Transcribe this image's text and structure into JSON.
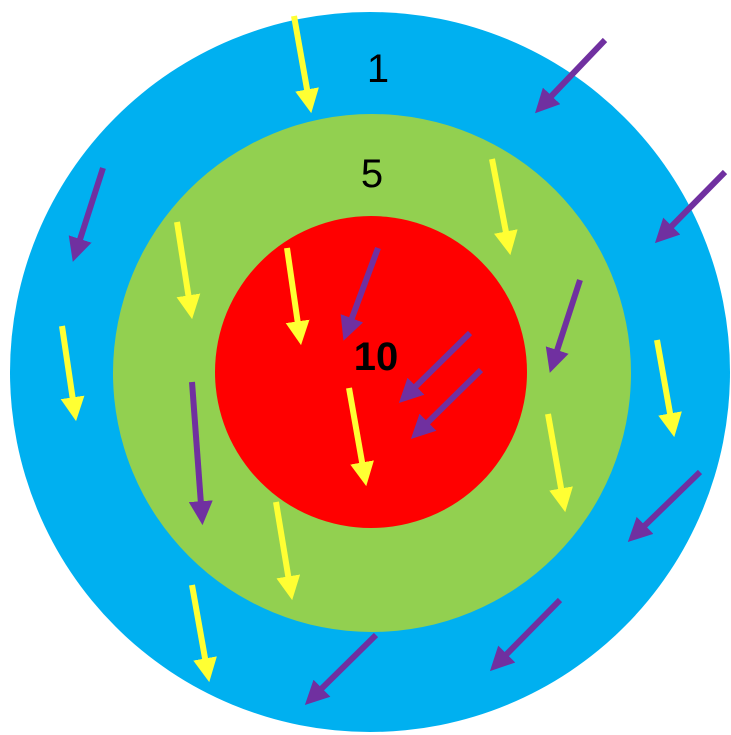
{
  "diagram": {
    "rings": [
      {
        "id": "outer",
        "label": "1",
        "color": "#00B0F0"
      },
      {
        "id": "middle",
        "label": "5",
        "color": "#92D050"
      },
      {
        "id": "inner",
        "label": "10",
        "color": "#FF0000"
      }
    ],
    "arrow_colors": {
      "yellow": "#FFFF33",
      "purple": "#7030A0"
    }
  }
}
